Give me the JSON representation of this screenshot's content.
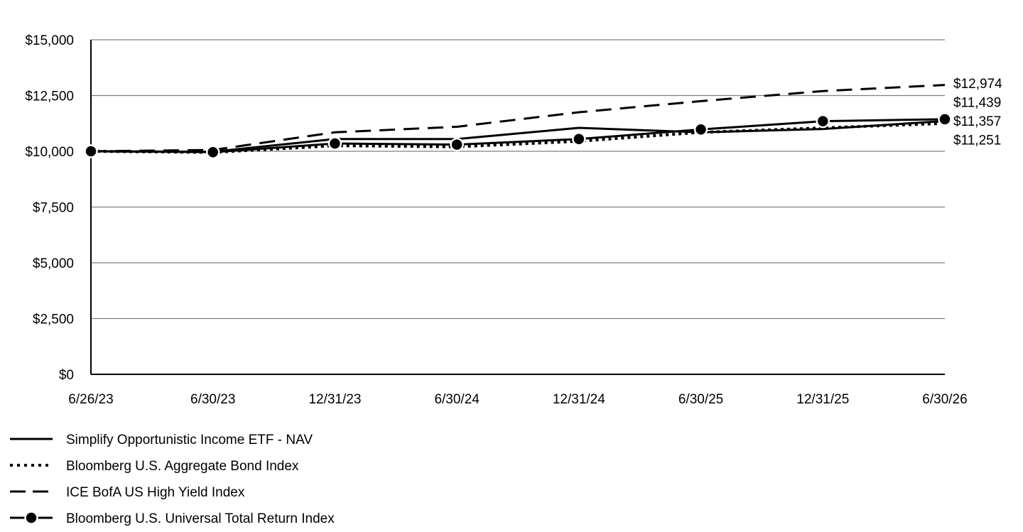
{
  "chart_data": {
    "type": "line",
    "title": "",
    "xlabel": "",
    "ylabel": "",
    "x": [
      "6/26/23",
      "6/30/23",
      "12/31/23",
      "6/30/24",
      "12/31/24",
      "6/30/25",
      "12/31/25",
      "6/30/26"
    ],
    "y_ticks": [
      "$0",
      "$2,500",
      "$5,000",
      "$7,500",
      "$10,000",
      "$12,500",
      "$15,000"
    ],
    "ylim": [
      0,
      15000
    ],
    "y_step": 2500,
    "grid": "horizontal",
    "legend_position": "bottom-left",
    "series": [
      {
        "name": "Simplify Opportunistic Income ETF - NAV",
        "style": "solid",
        "values": [
          10000,
          9980,
          10550,
          10550,
          11050,
          10850,
          11000,
          11357
        ],
        "end_label": "$11,357"
      },
      {
        "name": "Bloomberg U.S. Aggregate Bond Index",
        "style": "dotted",
        "values": [
          10000,
          9950,
          10250,
          10200,
          10450,
          10850,
          11050,
          11251
        ],
        "end_label": "$11,251"
      },
      {
        "name": "ICE BofA US High Yield Index",
        "style": "dashed",
        "values": [
          10000,
          10060,
          10850,
          11100,
          11750,
          12250,
          12700,
          12974
        ],
        "end_label": "$12,974"
      },
      {
        "name": "Bloomberg U.S. Universal Total Return Index",
        "style": "solid-marker",
        "values": [
          10000,
          9960,
          10350,
          10300,
          10550,
          10980,
          11350,
          11439
        ],
        "end_label": "$11,439"
      }
    ],
    "end_labels_order": [
      "$12,974",
      "$11,439",
      "$11,357",
      "$11,251"
    ],
    "colors": {
      "line": "#000000",
      "grid": "#7f7f7f",
      "axis": "#000000",
      "marker_edge": "#ffffff"
    }
  }
}
